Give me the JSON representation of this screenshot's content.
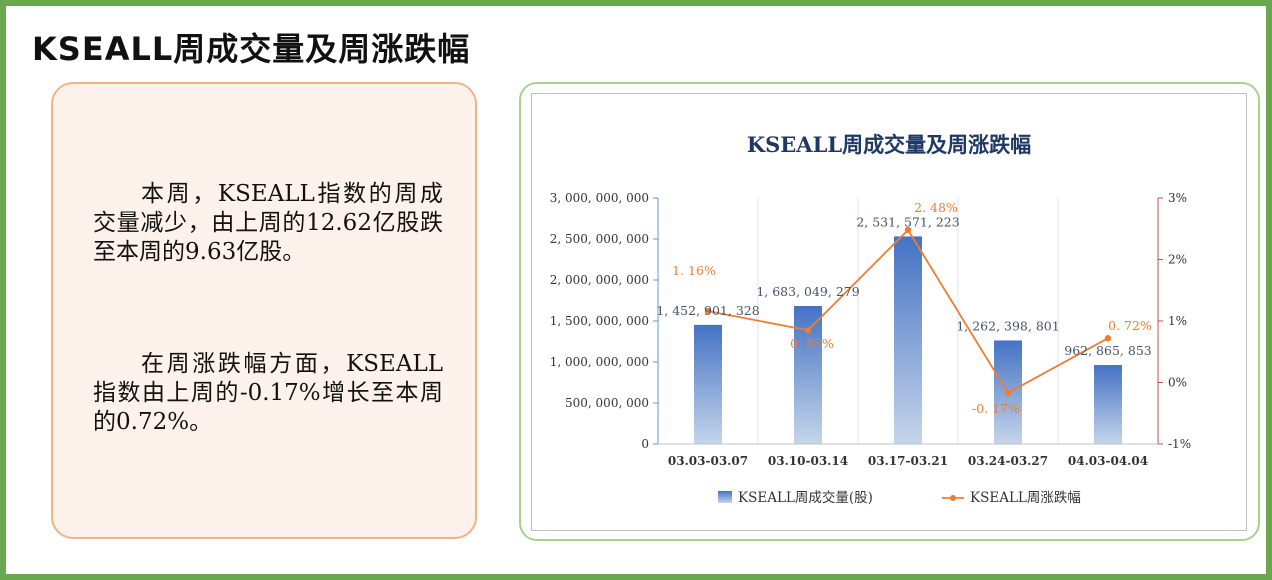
{
  "page": {
    "heading": "KSEALL周成交量及周涨跌幅",
    "paragraph1": "本周，KSEALL指数的周成交量减少，由上周的12.62亿股跌至本周的9.63亿股。",
    "paragraph2": "在周涨跌幅方面，KSEALL指数由上周的-0.17%增长至本周的0.72%。"
  },
  "colors": {
    "frame": "#6aa84f",
    "text_card_border": "#f4b183",
    "text_card_bg": "#fdf1eb",
    "chart_card_border": "#a9d08e",
    "bar_top": "#4472c4",
    "bar_bottom": "#c5d5ea",
    "line": "#ed7d31",
    "title": "#1f3864",
    "left_axis": "#5b9bd5",
    "right_axis": "#c0504d"
  },
  "chart_data": {
    "type": "bar",
    "title": "KSEALL周成交量及周涨跌幅",
    "categories": [
      "03.03-03.07",
      "03.10-03.14",
      "03.17-03.21",
      "03.24-03.27",
      "04.03-04.04"
    ],
    "series": [
      {
        "name": "KSEALL周成交量(股)",
        "type": "bar",
        "axis": "left",
        "values": [
          1452901328,
          1683049279,
          2531571223,
          1262398801,
          962865853
        ],
        "labels": [
          "1, 452, 901, 328",
          "1, 683, 049, 279",
          "2, 531, 571, 223",
          "1, 262, 398, 801",
          "962, 865, 853"
        ]
      },
      {
        "name": "KSEALL周涨跌幅",
        "type": "line",
        "axis": "right",
        "values": [
          1.16,
          0.85,
          2.48,
          -0.17,
          0.72
        ],
        "labels": [
          "1. 16%",
          "0. 85%",
          "2. 48%",
          "-0. 17%",
          "0. 72%"
        ]
      }
    ],
    "y_left": {
      "range": [
        0,
        3000000000
      ],
      "ticks": [
        0,
        500000000,
        1000000000,
        1500000000,
        2000000000,
        2500000000,
        3000000000
      ],
      "tick_labels": [
        "0",
        "500, 000, 000",
        "1, 000, 000, 000",
        "1, 500, 000, 000",
        "2, 000, 000, 000",
        "2, 500, 000, 000",
        "3, 000, 000, 000"
      ]
    },
    "y_right": {
      "range": [
        -1,
        3
      ],
      "ticks": [
        -1,
        0,
        1,
        2,
        3
      ],
      "tick_labels": [
        "-1%",
        "0%",
        "1%",
        "2%",
        "3%"
      ]
    },
    "grid": "vertical",
    "legend": "bottom"
  }
}
